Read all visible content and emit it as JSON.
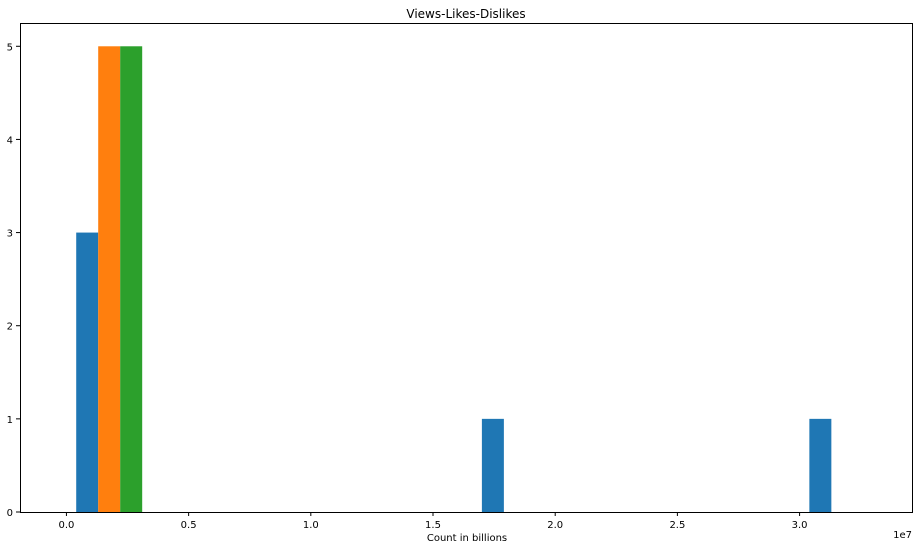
{
  "chart_data": {
    "type": "bar",
    "title": "Views-Likes-Dislikes",
    "xlabel": "Count in billions",
    "ylabel": "",
    "x_offset_label": "1e7",
    "xlim": [
      -0.19,
      3.46
    ],
    "ylim": [
      0,
      5.25
    ],
    "xticks": [
      0.0,
      0.5,
      1.0,
      1.5,
      2.0,
      2.5,
      3.0
    ],
    "xtick_labels": [
      "0.0",
      "0.5",
      "1.0",
      "1.5",
      "2.0",
      "2.5",
      "3.0"
    ],
    "yticks": [
      0,
      1,
      2,
      3,
      4,
      5
    ],
    "ytick_labels": [
      "0",
      "1",
      "2",
      "3",
      "4",
      "5"
    ],
    "grid": false,
    "legend": "none",
    "series": [
      {
        "color": "#1f77b4",
        "bars": [
          {
            "x0": 0.04,
            "x1": 0.13,
            "value": 3
          },
          {
            "x0": 1.7,
            "x1": 1.79,
            "value": 1
          },
          {
            "x0": 3.04,
            "x1": 3.13,
            "value": 1
          }
        ]
      },
      {
        "color": "#ff7f0e",
        "bars": [
          {
            "x0": 0.13,
            "x1": 0.22,
            "value": 5
          }
        ]
      },
      {
        "color": "#2ca02c",
        "bars": [
          {
            "x0": 0.22,
            "x1": 0.31,
            "value": 5
          }
        ]
      }
    ]
  }
}
